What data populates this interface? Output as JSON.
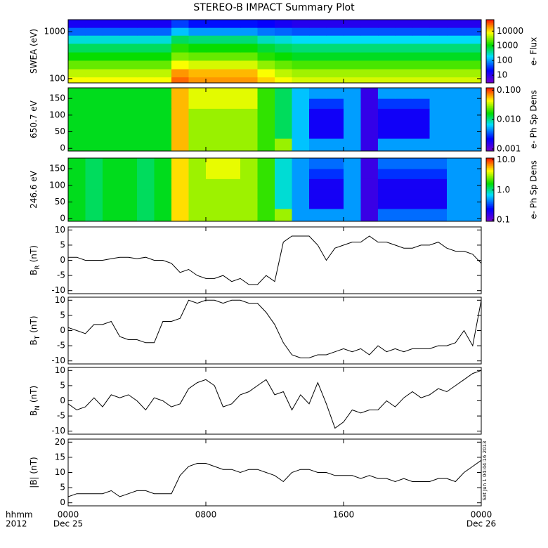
{
  "page": {
    "title": "STEREO-B IMPACT Summary Plot",
    "x_unit": "hhmm",
    "year": "2012",
    "dates": [
      "Dec 25",
      "Dec 26"
    ],
    "timestamp": "Sat Jun 1 04:44:16 2013",
    "xlim": [
      0,
      24
    ],
    "xticks": [
      {
        "value": 0,
        "label": "0000"
      },
      {
        "value": 8,
        "label": "0800"
      },
      {
        "value": 16,
        "label": "1600"
      },
      {
        "value": 24,
        "label": "0000"
      }
    ]
  },
  "chart_data": [
    {
      "type": "heatmap",
      "ylabel": "SWEA (eV)",
      "zlabel": "e- Flux",
      "ylog": true,
      "zlog": true,
      "ylim": [
        81,
        1800
      ],
      "yticks": [
        100,
        1000
      ],
      "zlim": [
        3,
        60000
      ],
      "zticks": [
        10,
        100,
        1000,
        10000
      ],
      "x": [
        0.5,
        1.5,
        2.5,
        3.5,
        4.5,
        5.5,
        6.5,
        7.5,
        8.5,
        9.5,
        10.5,
        11.5,
        12.5,
        13.5,
        14.5,
        15.5,
        16.5,
        17.5,
        18.5,
        19.5,
        20.5,
        21.5,
        22.5,
        23.5
      ],
      "y": [
        90,
        130,
        200,
        300,
        450,
        700,
        1000,
        1500
      ],
      "z": [
        [
          8000,
          8000,
          8000,
          8000,
          8000,
          8000,
          30000,
          20000,
          20000,
          20000,
          20000,
          12000,
          8000,
          6000,
          6000,
          6000,
          6000,
          6000,
          6000,
          6000,
          6000,
          6000,
          6000,
          6000
        ],
        [
          5000,
          5000,
          5000,
          5000,
          5000,
          5000,
          20000,
          15000,
          15000,
          15000,
          15000,
          8000,
          5000,
          4000,
          4000,
          4000,
          4000,
          4000,
          4000,
          4000,
          4000,
          4000,
          4000,
          4000
        ],
        [
          2500,
          2500,
          2500,
          2500,
          2500,
          2500,
          8000,
          6000,
          6000,
          6000,
          6000,
          3500,
          2500,
          2000,
          2000,
          2000,
          2000,
          2000,
          2000,
          2000,
          2000,
          2000,
          2000,
          2000
        ],
        [
          1200,
          1200,
          1200,
          1200,
          1200,
          1200,
          3000,
          2500,
          2500,
          2500,
          2500,
          1500,
          1200,
          900,
          900,
          900,
          900,
          900,
          900,
          900,
          900,
          900,
          900,
          900
        ],
        [
          600,
          600,
          600,
          600,
          600,
          600,
          1500,
          1200,
          1200,
          1200,
          1200,
          800,
          600,
          500,
          500,
          500,
          500,
          500,
          500,
          500,
          500,
          500,
          500,
          500
        ],
        [
          250,
          250,
          250,
          250,
          250,
          250,
          600,
          500,
          500,
          500,
          500,
          300,
          250,
          200,
          200,
          200,
          200,
          200,
          200,
          200,
          200,
          200,
          200,
          200
        ],
        [
          60,
          60,
          60,
          60,
          60,
          60,
          150,
          100,
          100,
          100,
          100,
          70,
          60,
          50,
          50,
          50,
          50,
          50,
          50,
          50,
          50,
          50,
          50,
          50
        ],
        [
          15,
          15,
          15,
          15,
          15,
          15,
          40,
          25,
          25,
          25,
          25,
          20,
          15,
          12,
          12,
          12,
          12,
          12,
          12,
          12,
          12,
          12,
          12,
          12
        ]
      ]
    },
    {
      "type": "heatmap",
      "ylabel": "650.7 eV",
      "zlabel": "e- Ph Sp Dens",
      "ylog": false,
      "zlog": true,
      "ylim": [
        -8,
        182
      ],
      "yticks": [
        0,
        50,
        100,
        150
      ],
      "zlim": [
        0.00085,
        0.12
      ],
      "zticks": [
        0.001,
        {
          "value": 0.01,
          "label": "0.010"
        },
        {
          "value": 0.1,
          "label": "0.100"
        }
      ],
      "x": [
        0.5,
        1.5,
        2.5,
        3.5,
        4.5,
        5.5,
        6.5,
        7.5,
        8.5,
        9.5,
        10.5,
        11.5,
        12.5,
        13.5,
        14.5,
        15.5,
        16.5,
        17.5,
        18.5,
        19.5,
        20.5,
        21.5,
        22.5,
        23.5
      ],
      "y": [
        15,
        45,
        75,
        105,
        135,
        165
      ],
      "z": [
        [
          0.015,
          0.015,
          0.015,
          0.015,
          0.015,
          0.015,
          0.06,
          0.03,
          0.03,
          0.03,
          0.03,
          0.02,
          0.03,
          0.006,
          0.005,
          0.005,
          0.005,
          0.0015,
          0.005,
          0.005,
          0.005,
          0.005,
          0.005,
          0.005
        ],
        [
          0.015,
          0.015,
          0.015,
          0.015,
          0.015,
          0.015,
          0.06,
          0.03,
          0.03,
          0.03,
          0.03,
          0.02,
          0.012,
          0.006,
          0.002,
          0.002,
          0.005,
          0.0015,
          0.002,
          0.002,
          0.002,
          0.005,
          0.005,
          0.005
        ],
        [
          0.015,
          0.015,
          0.015,
          0.015,
          0.015,
          0.015,
          0.06,
          0.03,
          0.03,
          0.03,
          0.03,
          0.02,
          0.012,
          0.006,
          0.002,
          0.002,
          0.005,
          0.0015,
          0.002,
          0.002,
          0.002,
          0.005,
          0.005,
          0.005
        ],
        [
          0.015,
          0.015,
          0.015,
          0.015,
          0.015,
          0.015,
          0.06,
          0.03,
          0.03,
          0.03,
          0.03,
          0.02,
          0.012,
          0.006,
          0.002,
          0.002,
          0.005,
          0.0015,
          0.002,
          0.002,
          0.002,
          0.005,
          0.005,
          0.005
        ],
        [
          0.015,
          0.015,
          0.015,
          0.015,
          0.015,
          0.015,
          0.06,
          0.04,
          0.04,
          0.04,
          0.04,
          0.02,
          0.012,
          0.006,
          0.003,
          0.003,
          0.005,
          0.0015,
          0.003,
          0.003,
          0.003,
          0.005,
          0.005,
          0.005
        ],
        [
          0.015,
          0.015,
          0.015,
          0.015,
          0.015,
          0.015,
          0.06,
          0.04,
          0.04,
          0.04,
          0.04,
          0.02,
          0.012,
          0.006,
          0.005,
          0.005,
          0.005,
          0.0015,
          0.005,
          0.005,
          0.005,
          0.005,
          0.005,
          0.005
        ]
      ]
    },
    {
      "type": "heatmap",
      "ylabel": "246.6 eV",
      "zlabel": "e- Ph Sp Dens",
      "ylog": false,
      "zlog": true,
      "ylim": [
        -8,
        182
      ],
      "yticks": [
        0,
        50,
        100,
        150
      ],
      "zlim": [
        0.09,
        11.5
      ],
      "zticks": [
        0.1,
        {
          "value": 1,
          "label": "1.0"
        },
        {
          "value": 10,
          "label": "10.0"
        }
      ],
      "x": [
        0.5,
        1.5,
        2.5,
        3.5,
        4.5,
        5.5,
        6.5,
        7.5,
        8.5,
        9.5,
        10.5,
        11.5,
        12.5,
        13.5,
        14.5,
        15.5,
        16.5,
        17.5,
        18.5,
        19.5,
        20.5,
        21.5,
        22.5,
        23.5
      ],
      "y": [
        15,
        45,
        75,
        105,
        135,
        165
      ],
      "z": [
        [
          1.5,
          1.2,
          1.5,
          1.5,
          1.2,
          1.5,
          5,
          3,
          3,
          3,
          3,
          2,
          3,
          0.5,
          0.5,
          0.5,
          0.5,
          0.15,
          0.4,
          0.4,
          0.4,
          0.4,
          0.5,
          0.5
        ],
        [
          1.5,
          1.2,
          1.5,
          1.5,
          1.2,
          1.5,
          5,
          3,
          3,
          3,
          3,
          2,
          0.8,
          0.5,
          0.2,
          0.2,
          0.5,
          0.15,
          0.2,
          0.2,
          0.2,
          0.2,
          0.5,
          0.5
        ],
        [
          1.5,
          1.2,
          1.5,
          1.5,
          1.2,
          1.5,
          5,
          3,
          3,
          3,
          3,
          2,
          0.8,
          0.5,
          0.2,
          0.2,
          0.5,
          0.15,
          0.2,
          0.2,
          0.2,
          0.2,
          0.5,
          0.5
        ],
        [
          1.5,
          1.2,
          1.5,
          1.5,
          1.2,
          1.5,
          5,
          3,
          3,
          3,
          3,
          2,
          0.8,
          0.5,
          0.2,
          0.2,
          0.5,
          0.15,
          0.2,
          0.2,
          0.2,
          0.2,
          0.5,
          0.5
        ],
        [
          1.5,
          1.2,
          1.5,
          1.5,
          1.2,
          1.5,
          5,
          3,
          4,
          4,
          3,
          2,
          0.8,
          0.5,
          0.3,
          0.3,
          0.5,
          0.15,
          0.3,
          0.3,
          0.3,
          0.3,
          0.5,
          0.5
        ],
        [
          1.5,
          1.2,
          1.5,
          1.5,
          1.2,
          1.5,
          5,
          3,
          4,
          4,
          3,
          2,
          0.8,
          0.5,
          0.4,
          0.4,
          0.5,
          0.15,
          0.4,
          0.4,
          0.4,
          0.4,
          0.5,
          0.5
        ]
      ]
    },
    {
      "type": "line",
      "ylabel": "B",
      "ylabel_sub": "R",
      "ylabel_unit": "(nT)",
      "color": "#000000",
      "ylim": [
        -11,
        11
      ],
      "yticks": [
        -10,
        -5,
        0,
        5,
        10
      ],
      "x": [
        0,
        0.5,
        1,
        1.5,
        2,
        2.5,
        3,
        3.5,
        4,
        4.5,
        5,
        5.5,
        6,
        6.5,
        7,
        7.5,
        8,
        8.5,
        9,
        9.5,
        10,
        10.5,
        11,
        11.5,
        12,
        12.5,
        13,
        13.5,
        14,
        14.5,
        15,
        15.5,
        16,
        16.5,
        17,
        17.5,
        18,
        18.5,
        19,
        19.5,
        20,
        20.5,
        21,
        21.5,
        22,
        22.5,
        23,
        23.5,
        24
      ],
      "values": [
        1,
        1,
        0,
        0,
        0,
        0.5,
        1,
        1,
        0.5,
        1,
        0,
        0,
        -1,
        -4,
        -3,
        -5,
        -6,
        -6,
        -5,
        -7,
        -6,
        -8,
        -8,
        -5,
        -7,
        6,
        8,
        8,
        8,
        5,
        0,
        4,
        5,
        6,
        6,
        8,
        6,
        6,
        5,
        4,
        4,
        5,
        5,
        6,
        4,
        3,
        3,
        2,
        -1
      ]
    },
    {
      "type": "line",
      "ylabel": "B",
      "ylabel_sub": "T",
      "ylabel_unit": "(nT)",
      "color": "#000000",
      "ylim": [
        -11,
        11
      ],
      "yticks": [
        -10,
        -5,
        0,
        5,
        10
      ],
      "x": [
        0,
        0.5,
        1,
        1.5,
        2,
        2.5,
        3,
        3.5,
        4,
        4.5,
        5,
        5.5,
        6,
        6.5,
        7,
        7.5,
        8,
        8.5,
        9,
        9.5,
        10,
        10.5,
        11,
        11.5,
        12,
        12.5,
        13,
        13.5,
        14,
        14.5,
        15,
        15.5,
        16,
        16.5,
        17,
        17.5,
        18,
        18.5,
        19,
        19.5,
        20,
        20.5,
        21,
        21.5,
        22,
        22.5,
        23,
        23.5,
        24
      ],
      "values": [
        1,
        0,
        -1,
        2,
        2,
        3,
        -2,
        -3,
        -3,
        -4,
        -4,
        3,
        3,
        4,
        10,
        9,
        10,
        10,
        9,
        10,
        10,
        9,
        9,
        6,
        2,
        -4,
        -8,
        -9,
        -9,
        -8,
        -8,
        -7,
        -6,
        -7,
        -6,
        -8,
        -5,
        -7,
        -6,
        -7,
        -6,
        -6,
        -6,
        -5,
        -5,
        -4,
        0,
        -5,
        10
      ]
    },
    {
      "type": "line",
      "ylabel": "B",
      "ylabel_sub": "N",
      "ylabel_unit": "(nT)",
      "color": "#000000",
      "ylim": [
        -11,
        11
      ],
      "yticks": [
        -10,
        -5,
        0,
        5,
        10
      ],
      "x": [
        0,
        0.5,
        1,
        1.5,
        2,
        2.5,
        3,
        3.5,
        4,
        4.5,
        5,
        5.5,
        6,
        6.5,
        7,
        7.5,
        8,
        8.5,
        9,
        9.5,
        10,
        10.5,
        11,
        11.5,
        12,
        12.5,
        13,
        13.5,
        14,
        14.5,
        15,
        15.5,
        16,
        16.5,
        17,
        17.5,
        18,
        18.5,
        19,
        19.5,
        20,
        20.5,
        21,
        21.5,
        22,
        22.5,
        23,
        23.5,
        24
      ],
      "values": [
        -1,
        -3,
        -2,
        1,
        -2,
        2,
        1,
        2,
        0,
        -3,
        1,
        0,
        -2,
        -1,
        4,
        6,
        7,
        5,
        -2,
        -1,
        2,
        3,
        5,
        7,
        2,
        3,
        -3,
        2,
        -1,
        6,
        -1,
        -9,
        -7,
        -3,
        -4,
        -3,
        -3,
        0,
        -2,
        1,
        3,
        1,
        2,
        4,
        3,
        5,
        7,
        9,
        10
      ]
    },
    {
      "type": "line",
      "ylabel": "|B| (nT)",
      "color": "#000000",
      "ylim": [
        -1,
        21
      ],
      "yticks": [
        0,
        5,
        10,
        15,
        20
      ],
      "x": [
        0,
        0.5,
        1,
        1.5,
        2,
        2.5,
        3,
        3.5,
        4,
        4.5,
        5,
        5.5,
        6,
        6.5,
        7,
        7.5,
        8,
        8.5,
        9,
        9.5,
        10,
        10.5,
        11,
        11.5,
        12,
        12.5,
        13,
        13.5,
        14,
        14.5,
        15,
        15.5,
        16,
        16.5,
        17,
        17.5,
        18,
        18.5,
        19,
        19.5,
        20,
        20.5,
        21,
        21.5,
        22,
        22.5,
        23,
        23.5,
        24
      ],
      "values": [
        2,
        3,
        3,
        3,
        3,
        4,
        2,
        3,
        4,
        4,
        3,
        3,
        3,
        9,
        12,
        13,
        13,
        12,
        11,
        11,
        10,
        11,
        11,
        10,
        9,
        7,
        10,
        11,
        11,
        10,
        10,
        9,
        9,
        9,
        8,
        9,
        8,
        8,
        7,
        8,
        7,
        7,
        7,
        8,
        8,
        7,
        10,
        12,
        14
      ]
    }
  ]
}
